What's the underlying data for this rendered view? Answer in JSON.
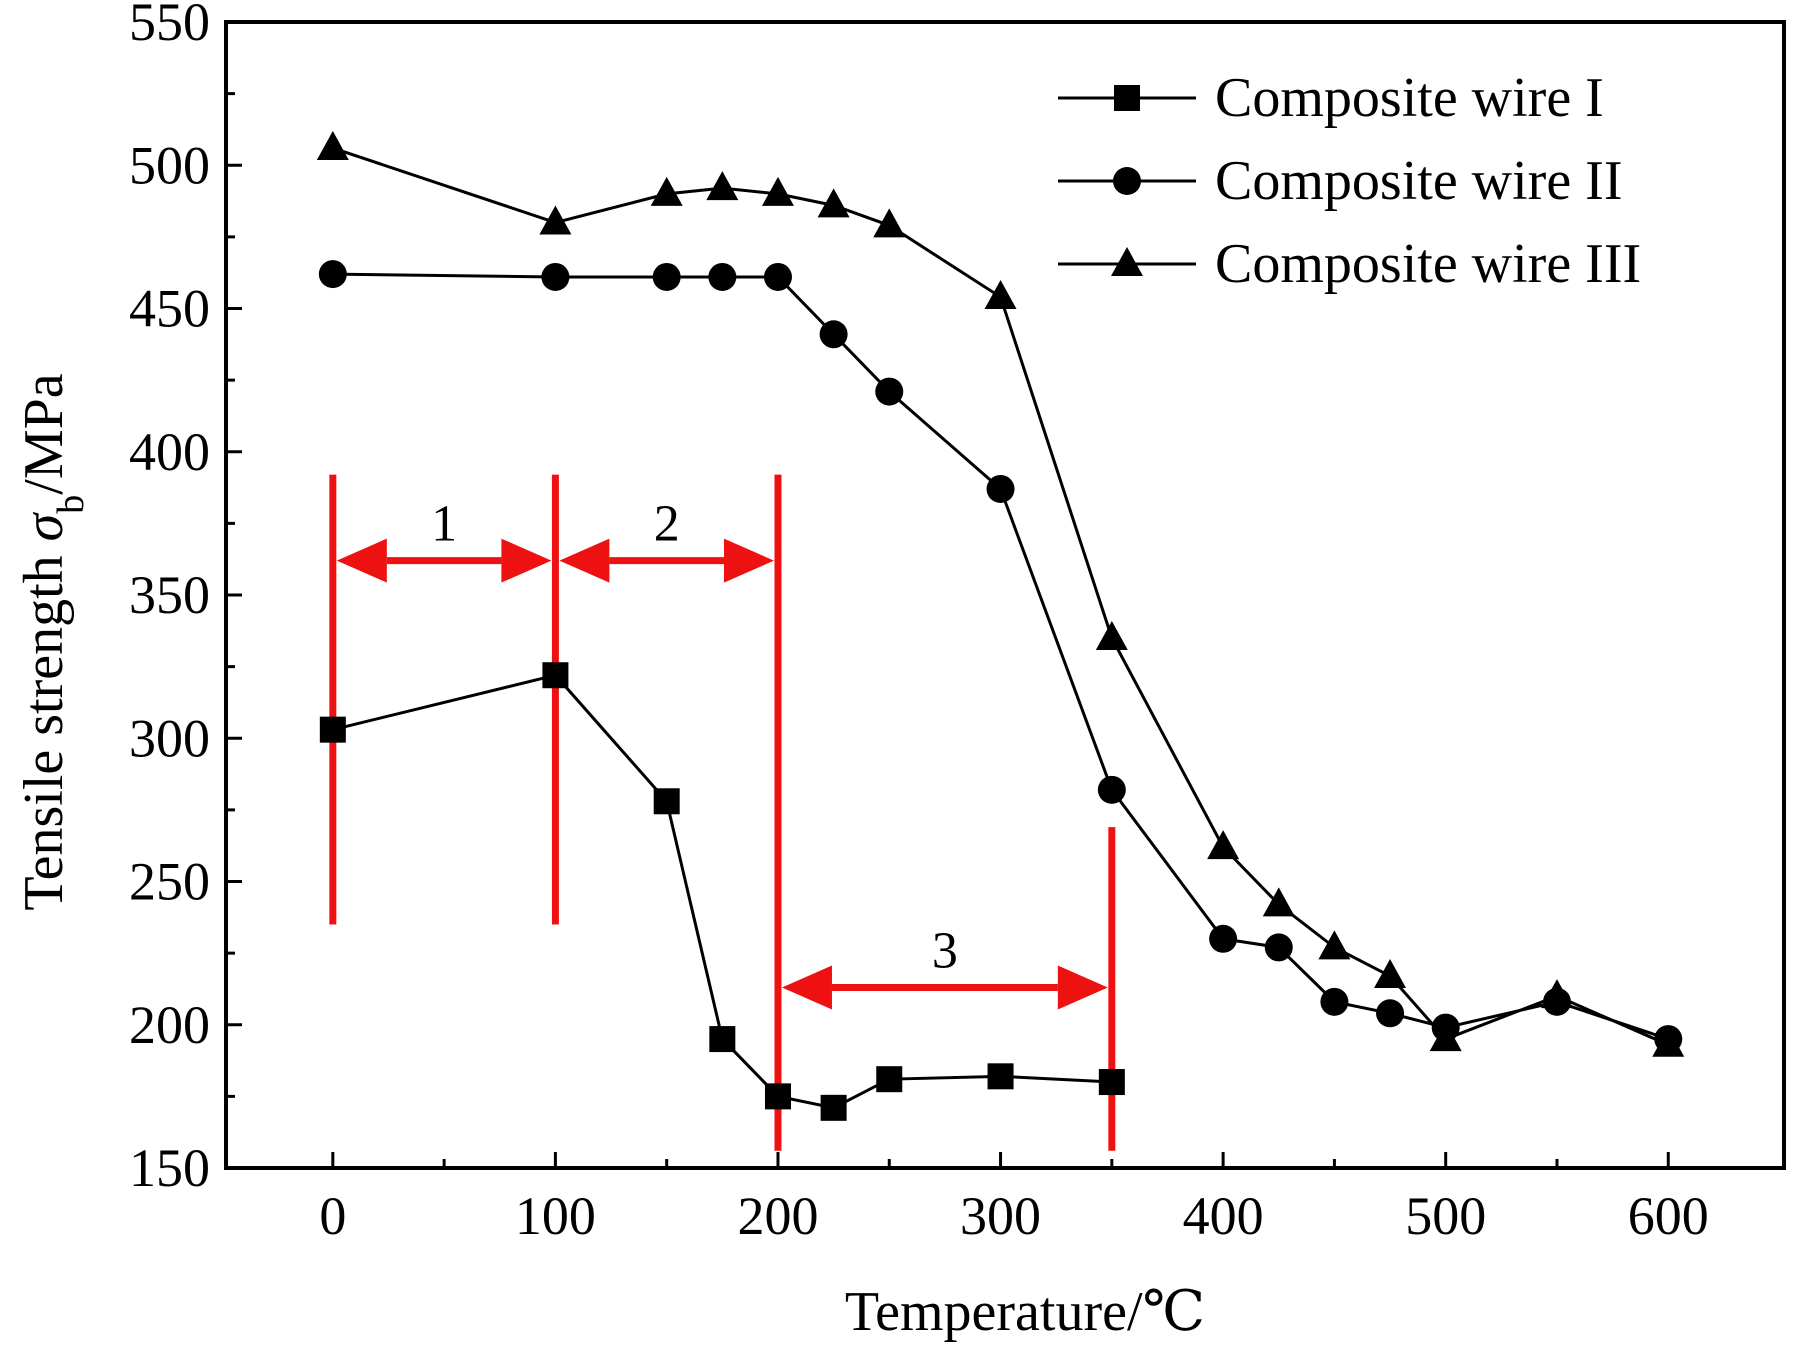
{
  "chart_data": {
    "type": "line",
    "xlabel": "Temperature/℃",
    "ylabel_main": "Tensile strength ",
    "ylabel_symbol": "σ",
    "ylabel_subscript": "b",
    "ylabel_unit": "/MPa",
    "xlim": [
      -48,
      652
    ],
    "ylim": [
      150,
      550
    ],
    "xticks": [
      0,
      100,
      200,
      300,
      400,
      500,
      600
    ],
    "yticks": [
      150,
      200,
      250,
      300,
      350,
      400,
      450,
      500,
      550
    ],
    "legend_position": "top-right",
    "series": [
      {
        "name": "Composite wire I",
        "marker": "square",
        "x": [
          0,
          100,
          150,
          175,
          200,
          225,
          250,
          300,
          350
        ],
        "y": [
          303,
          322,
          278,
          195,
          175,
          171,
          181,
          182,
          180
        ]
      },
      {
        "name": "Composite wire II",
        "marker": "circle",
        "x": [
          0,
          100,
          150,
          175,
          200,
          225,
          250,
          300,
          350,
          400,
          425,
          450,
          475,
          500,
          550,
          600
        ],
        "y": [
          462,
          461,
          461,
          461,
          461,
          441,
          421,
          387,
          282,
          230,
          227,
          208,
          204,
          199,
          208,
          195
        ]
      },
      {
        "name": "Composite wire III",
        "marker": "triangle",
        "x": [
          0,
          100,
          150,
          175,
          200,
          225,
          250,
          300,
          350,
          400,
          425,
          450,
          475,
          500,
          550,
          600
        ],
        "y": [
          506,
          480,
          490,
          492,
          490,
          486,
          479,
          454,
          335,
          262,
          242,
          227,
          217,
          195,
          210,
          193
        ]
      }
    ],
    "annotations": {
      "color": "#ee1111",
      "regions": [
        {
          "label": "1",
          "from": 0,
          "to": 100,
          "y": 362
        },
        {
          "label": "2",
          "from": 100,
          "to": 200,
          "y": 362
        },
        {
          "label": "3",
          "from": 200,
          "to": 350,
          "y": 213
        }
      ],
      "boundaries": [
        {
          "x": 0,
          "y1": 235,
          "y2": 392
        },
        {
          "x": 100,
          "y1": 235,
          "y2": 392
        },
        {
          "x": 200,
          "y1": 156,
          "y2": 392
        },
        {
          "x": 350,
          "y1": 156,
          "y2": 269
        }
      ]
    }
  }
}
